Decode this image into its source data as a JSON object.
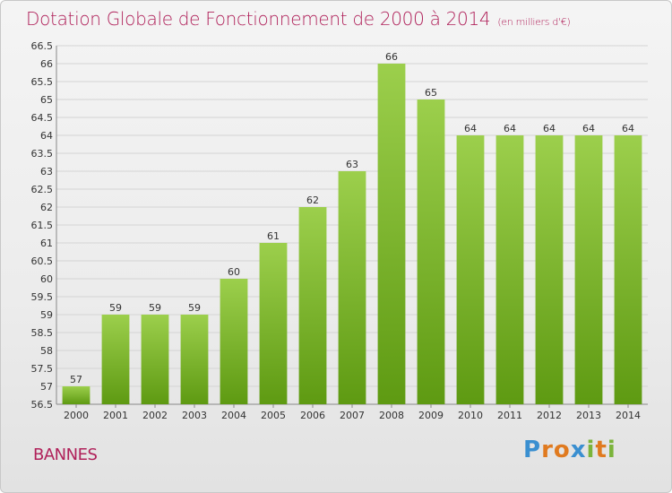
{
  "header": {
    "title": "Dotation Globale de Fonctionnement de 2000 à 2014",
    "subtitle": "(en milliers d'€)"
  },
  "commune": "BANNES",
  "logo": {
    "text": "Proxiti"
  },
  "colors": {
    "title": "#b0215a",
    "bar_top": "#9ccf4c",
    "bar_bottom": "#5e9a12"
  },
  "chart_data": {
    "type": "bar",
    "title": "Dotation Globale de Fonctionnement de 2000 à 2014",
    "subtitle": "(en milliers d'€)",
    "categories": [
      "2000",
      "2001",
      "2002",
      "2003",
      "2004",
      "2005",
      "2006",
      "2007",
      "2008",
      "2009",
      "2010",
      "2011",
      "2012",
      "2013",
      "2014"
    ],
    "values": [
      57,
      59,
      59,
      59,
      60,
      61,
      62,
      63,
      66,
      65,
      64,
      64,
      64,
      64,
      64
    ],
    "ylim": [
      56.5,
      66.5
    ],
    "yticks": [
      "56.5",
      "57",
      "57.5",
      "58",
      "58.5",
      "59",
      "59.5",
      "60",
      "60.5",
      "61",
      "61.5",
      "62",
      "62.5",
      "63",
      "63.5",
      "64",
      "64.5",
      "65",
      "65.5",
      "66",
      "66.5"
    ],
    "grid": true,
    "xlabel": "",
    "ylabel": ""
  }
}
